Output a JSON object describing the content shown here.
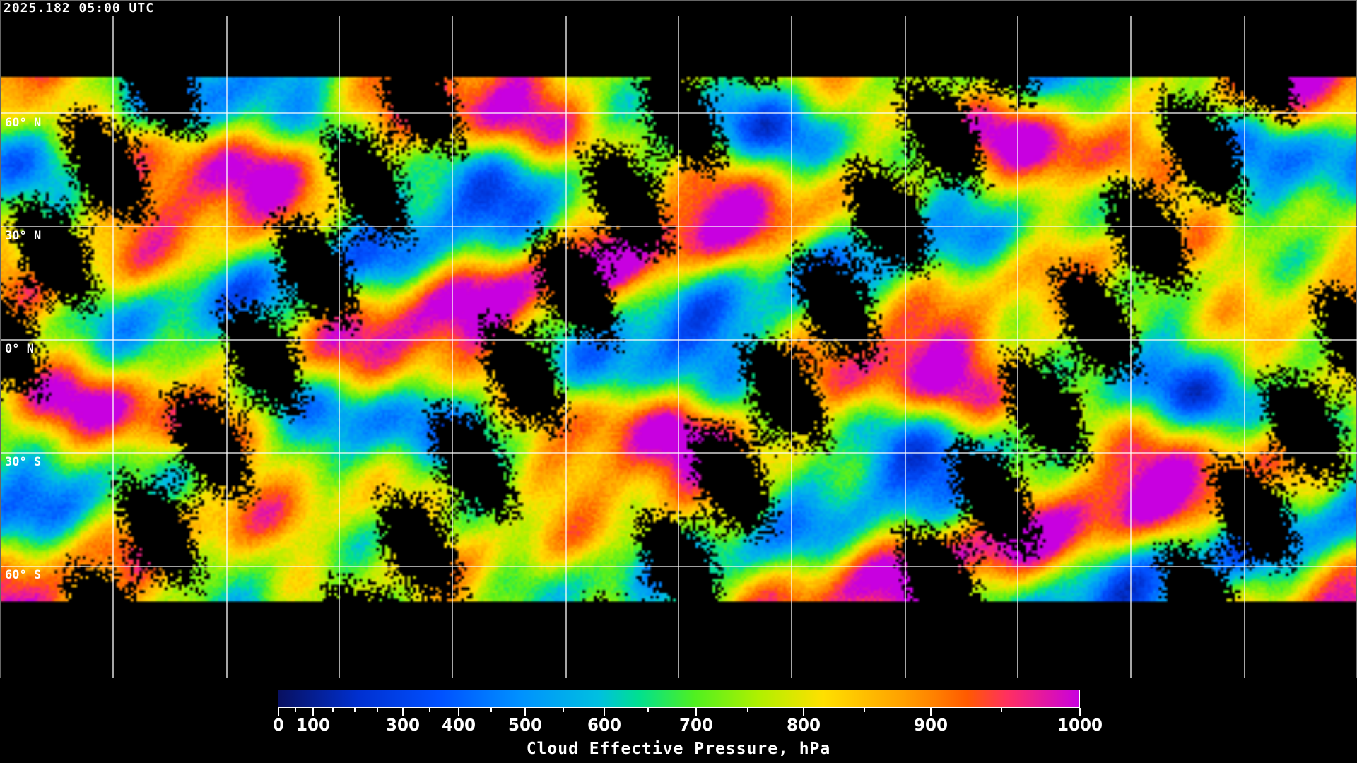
{
  "timestamp": "2025.182 05:00 UTC",
  "latitude_labels": [
    "60° N",
    "30° N",
    "0° N",
    "30° S",
    "60° S"
  ],
  "colorbar": {
    "title": "Cloud Effective Pressure, hPa",
    "range": [
      0,
      1000
    ],
    "major_ticks": [
      "0",
      "100",
      "300",
      "400",
      "500",
      "600",
      "700",
      "800",
      "900",
      "1000"
    ],
    "minor_ticks": [
      50,
      150,
      200,
      250,
      350,
      450,
      550,
      650,
      750,
      850,
      950
    ],
    "colors": [
      "#081060",
      "#0030d0",
      "#0050ff",
      "#0090ff",
      "#00c0e0",
      "#00e090",
      "#50f020",
      "#b0f000",
      "#ffe000",
      "#ffa000",
      "#ff8000",
      "#ff5a00",
      "#ff3060",
      "#c800e0"
    ]
  },
  "colors": {
    "background": "#000000",
    "grid": "#ffffff",
    "coastline": "#ffffff"
  }
}
